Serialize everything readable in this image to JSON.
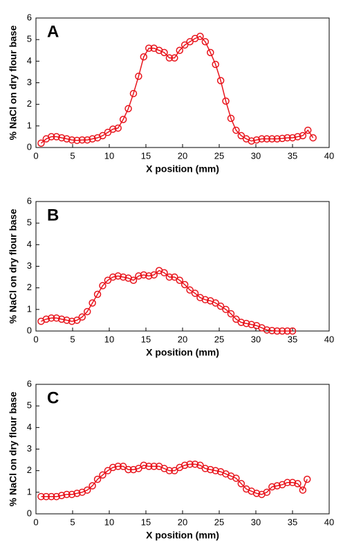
{
  "chart_data": [
    {
      "type": "line",
      "title": "A",
      "x_label": "X position (mm)",
      "y_label": "% NaCl on dry flour base",
      "series": [
        {
          "color": "#e8141c",
          "x": [
            0.7,
            1.4,
            2.1,
            2.8,
            3.5,
            4.2,
            4.9,
            5.6,
            6.3,
            7.0,
            7.7,
            8.4,
            9.1,
            9.8,
            10.5,
            11.2,
            11.9,
            12.6,
            13.3,
            14.0,
            14.7,
            15.4,
            16.1,
            16.8,
            17.5,
            18.2,
            18.9,
            19.6,
            20.3,
            21.0,
            21.7,
            22.4,
            23.1,
            23.8,
            24.5,
            25.2,
            25.9,
            26.6,
            27.3,
            28.0,
            28.7,
            29.4,
            30.1,
            30.8,
            31.5,
            32.2,
            32.9,
            33.6,
            34.3,
            35.0,
            35.7,
            36.4,
            37.1,
            37.8
          ],
          "values": [
            0.2,
            0.4,
            0.5,
            0.5,
            0.45,
            0.4,
            0.35,
            0.33,
            0.35,
            0.35,
            0.4,
            0.45,
            0.55,
            0.7,
            0.85,
            0.9,
            1.3,
            1.8,
            2.5,
            3.3,
            4.2,
            4.6,
            4.6,
            4.5,
            4.4,
            4.15,
            4.15,
            4.5,
            4.75,
            4.9,
            5.05,
            5.15,
            4.9,
            4.4,
            3.85,
            3.1,
            2.15,
            1.35,
            0.8,
            0.55,
            0.4,
            0.3,
            0.35,
            0.4,
            0.4,
            0.4,
            0.4,
            0.42,
            0.45,
            0.45,
            0.5,
            0.55,
            0.8,
            0.45
          ]
        }
      ],
      "xlim": [
        0,
        40
      ],
      "ylim": [
        0,
        6
      ],
      "xticks": [
        0,
        5,
        10,
        15,
        20,
        25,
        30,
        35,
        40
      ],
      "yticks": [
        0,
        1,
        2,
        3,
        4,
        5,
        6
      ]
    },
    {
      "type": "line",
      "title": "B",
      "x_label": "X position (mm)",
      "y_label": "% NaCl on dry flour base",
      "series": [
        {
          "color": "#e8141c",
          "x": [
            0.7,
            1.4,
            2.1,
            2.8,
            3.5,
            4.2,
            4.9,
            5.6,
            6.3,
            7.0,
            7.7,
            8.4,
            9.1,
            9.8,
            10.5,
            11.2,
            11.9,
            12.6,
            13.3,
            14.0,
            14.7,
            15.4,
            16.1,
            16.8,
            17.5,
            18.2,
            18.9,
            19.6,
            20.3,
            21.0,
            21.7,
            22.4,
            23.1,
            23.8,
            24.5,
            25.2,
            25.9,
            26.6,
            27.3,
            28.0,
            28.7,
            29.4,
            30.1,
            30.8,
            31.5,
            32.2,
            32.9,
            33.6,
            34.3,
            35.0
          ],
          "values": [
            0.45,
            0.55,
            0.6,
            0.6,
            0.55,
            0.5,
            0.45,
            0.5,
            0.65,
            0.9,
            1.3,
            1.7,
            2.1,
            2.35,
            2.5,
            2.55,
            2.5,
            2.45,
            2.35,
            2.55,
            2.6,
            2.55,
            2.6,
            2.8,
            2.7,
            2.5,
            2.5,
            2.35,
            2.15,
            1.9,
            1.75,
            1.55,
            1.45,
            1.4,
            1.3,
            1.15,
            1.0,
            0.8,
            0.55,
            0.4,
            0.35,
            0.3,
            0.25,
            0.15,
            0.05,
            0.02,
            0,
            0,
            0,
            0
          ]
        }
      ],
      "xlim": [
        0,
        40
      ],
      "ylim": [
        0,
        6
      ],
      "xticks": [
        0,
        5,
        10,
        15,
        20,
        25,
        30,
        35,
        40
      ],
      "yticks": [
        0,
        1,
        2,
        3,
        4,
        5,
        6
      ]
    },
    {
      "type": "line",
      "title": "C",
      "x_label": "X position (mm)",
      "y_label": "% NaCl on dry flour base",
      "series": [
        {
          "color": "#e8141c",
          "x": [
            0.7,
            1.4,
            2.1,
            2.8,
            3.5,
            4.2,
            4.9,
            5.6,
            6.3,
            7.0,
            7.7,
            8.4,
            9.1,
            9.8,
            10.5,
            11.2,
            11.9,
            12.6,
            13.3,
            14.0,
            14.7,
            15.4,
            16.1,
            16.8,
            17.5,
            18.2,
            18.9,
            19.6,
            20.3,
            21.0,
            21.7,
            22.4,
            23.1,
            23.8,
            24.5,
            25.2,
            25.9,
            26.6,
            27.3,
            28.0,
            28.7,
            29.4,
            30.1,
            30.8,
            31.5,
            32.2,
            32.9,
            33.6,
            34.3,
            35.0,
            35.7,
            36.4,
            37.0
          ],
          "values": [
            0.8,
            0.8,
            0.8,
            0.8,
            0.85,
            0.9,
            0.9,
            0.95,
            1.0,
            1.1,
            1.3,
            1.6,
            1.8,
            2.0,
            2.15,
            2.2,
            2.2,
            2.05,
            2.05,
            2.1,
            2.25,
            2.2,
            2.2,
            2.2,
            2.1,
            2.0,
            2.0,
            2.15,
            2.25,
            2.3,
            2.3,
            2.25,
            2.1,
            2.05,
            2.0,
            1.95,
            1.85,
            1.75,
            1.65,
            1.4,
            1.15,
            1.05,
            0.95,
            0.9,
            1.0,
            1.25,
            1.3,
            1.35,
            1.45,
            1.45,
            1.4,
            1.1,
            1.6
          ]
        }
      ],
      "xlim": [
        0,
        40
      ],
      "ylim": [
        0,
        6
      ],
      "xticks": [
        0,
        5,
        10,
        15,
        20,
        25,
        30,
        35,
        40
      ],
      "yticks": [
        0,
        1,
        2,
        3,
        4,
        5,
        6
      ]
    }
  ]
}
